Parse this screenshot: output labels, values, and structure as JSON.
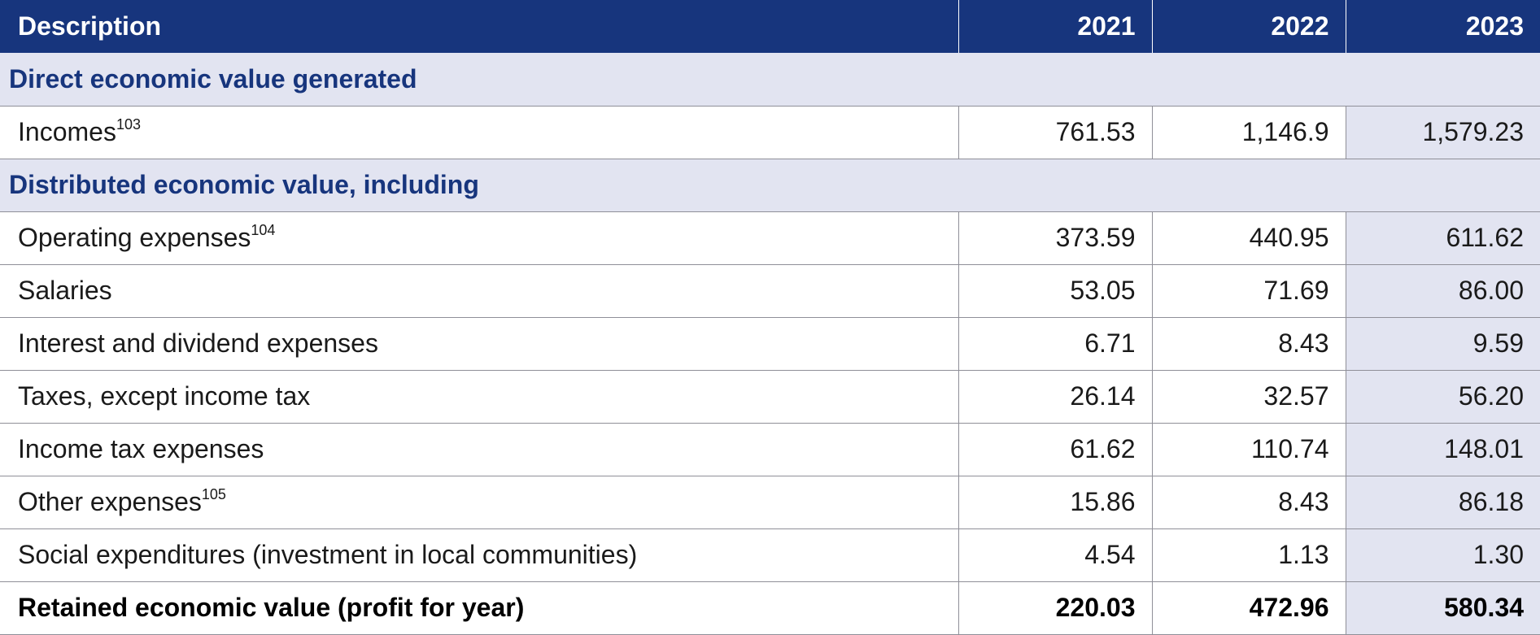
{
  "table": {
    "headers": [
      "Description",
      "2021",
      "2022",
      "2023"
    ],
    "sections": [
      {
        "title": "Direct economic value generated",
        "rows": [
          {
            "label": "Incomes",
            "note": "103",
            "values": [
              "761.53",
              "1,146.9",
              "1,579.23"
            ]
          }
        ]
      },
      {
        "title": "Distributed economic value, including",
        "rows": [
          {
            "label": "Operating expenses",
            "note": "104",
            "values": [
              "373.59",
              "440.95",
              "611.62"
            ]
          },
          {
            "label": "Salaries",
            "note": "",
            "values": [
              "53.05",
              "71.69",
              "86.00"
            ]
          },
          {
            "label": "Interest and dividend expenses",
            "note": "",
            "values": [
              "6.71",
              "8.43",
              "9.59"
            ]
          },
          {
            "label": "Taxes, except income tax",
            "note": "",
            "values": [
              "26.14",
              "32.57",
              "56.20"
            ]
          },
          {
            "label": "Income tax expenses",
            "note": "",
            "values": [
              "61.62",
              "110.74",
              "148.01"
            ]
          },
          {
            "label": "Other expenses",
            "note": "105",
            "values": [
              "15.86",
              "8.43",
              "86.18"
            ]
          },
          {
            "label": "Social expenditures (investment in local communities)",
            "note": "",
            "values": [
              "4.54",
              "1.13",
              "1.30"
            ]
          }
        ]
      }
    ],
    "total": {
      "label": "Retained economic value (profit for year)",
      "values": [
        "220.03",
        "472.96",
        "580.34"
      ]
    }
  },
  "colors": {
    "header_bg": "#17357d",
    "section_bg": "#e2e4f1",
    "section_text": "#17357d",
    "grid": "#8f8f98"
  }
}
